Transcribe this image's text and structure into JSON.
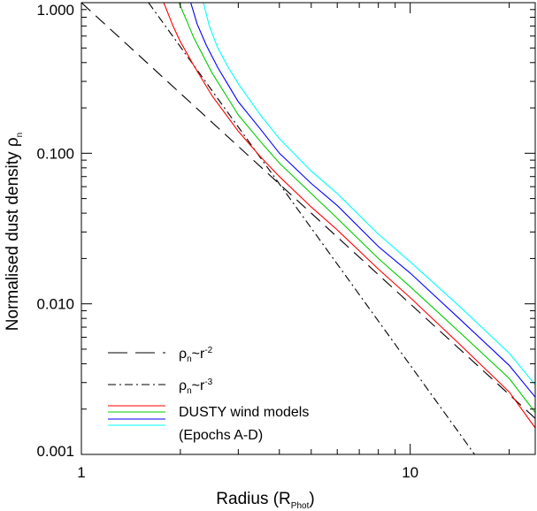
{
  "chart_data": {
    "type": "line",
    "xscale": "log",
    "yscale": "log",
    "xlim": [
      1,
      24
    ],
    "ylim": [
      0.001,
      1.0
    ],
    "xlabel": {
      "main": "Radius (R",
      "sub": "Phot",
      "end": ")"
    },
    "ylabel": {
      "main": "Normalised dust density ρ",
      "sub": "n"
    },
    "x_ticks": [
      {
        "value": 1,
        "label": "1"
      },
      {
        "value": 10,
        "label": "10"
      }
    ],
    "y_ticks": [
      {
        "value": 0.001,
        "label": "0.001"
      },
      {
        "value": 0.01,
        "label": "0.010"
      },
      {
        "value": 0.1,
        "label": "0.100"
      },
      {
        "value": 1.0,
        "label": "1.000"
      }
    ],
    "grid": false,
    "legend_position": "bottom-left",
    "series": [
      {
        "key": "r2",
        "style": "dashed",
        "color": "#000000",
        "x": [
          1,
          24
        ],
        "y": [
          1.0,
          0.001736
        ]
      },
      {
        "key": "r3",
        "style": "dashdot",
        "color": "#000000",
        "x": [
          1.6,
          15.7
        ],
        "y": [
          1.0,
          0.001
        ]
      },
      {
        "key": "epochA",
        "style": "solid",
        "color": "#ff0000",
        "x": [
          1.78,
          1.9,
          2.0,
          2.2,
          2.5,
          3.0,
          3.5,
          4.0,
          5.0,
          6.0,
          8.0,
          10.0,
          14.0,
          20.0,
          24.0
        ],
        "y": [
          1.0,
          0.7,
          0.55,
          0.38,
          0.24,
          0.14,
          0.095,
          0.07,
          0.044,
          0.031,
          0.017,
          0.011,
          0.0055,
          0.0026,
          0.0015
        ]
      },
      {
        "key": "epochB",
        "style": "solid",
        "color": "#00cc00",
        "x": [
          1.98,
          2.1,
          2.2,
          2.5,
          3.0,
          3.5,
          4.0,
          5.0,
          6.0,
          8.0,
          10.0,
          14.0,
          20.0,
          24.0
        ],
        "y": [
          1.0,
          0.74,
          0.58,
          0.34,
          0.18,
          0.12,
          0.086,
          0.054,
          0.037,
          0.02,
          0.013,
          0.0066,
          0.0032,
          0.0019
        ]
      },
      {
        "key": "epochC",
        "style": "solid",
        "color": "#0000ff",
        "x": [
          2.15,
          2.25,
          2.4,
          2.6,
          3.0,
          3.5,
          4.0,
          5.0,
          6.0,
          8.0,
          10.0,
          14.0,
          20.0,
          24.0
        ],
        "y": [
          1.0,
          0.72,
          0.52,
          0.37,
          0.22,
          0.145,
          0.1,
          0.063,
          0.045,
          0.024,
          0.016,
          0.0081,
          0.0039,
          0.0024
        ]
      },
      {
        "key": "epochD",
        "style": "solid",
        "color": "#00ffff",
        "x": [
          2.35,
          2.45,
          2.6,
          2.8,
          3.0,
          3.5,
          4.0,
          5.0,
          6.0,
          8.0,
          10.0,
          14.0,
          20.0,
          24.0
        ],
        "y": [
          1.0,
          0.7,
          0.5,
          0.37,
          0.29,
          0.18,
          0.125,
          0.076,
          0.054,
          0.029,
          0.019,
          0.0098,
          0.0047,
          0.0029
        ]
      }
    ],
    "legend": [
      {
        "style": "dashed",
        "color": "#000000",
        "label": {
          "main": "ρ",
          "sub": "n",
          "mid": "~r",
          "sup": "-2"
        }
      },
      {
        "style": "dashdot",
        "color": "#000000",
        "label": {
          "main": "ρ",
          "sub": "n",
          "mid": "~r",
          "sup": "-3"
        }
      },
      {
        "style": "solid",
        "color": "#ff0000",
        "label": {
          "main": "DUSTY wind models"
        }
      },
      {
        "style": "solid",
        "color": "#00cc00",
        "label": {
          "main": ""
        }
      },
      {
        "style": "solid",
        "color": "#0000ff",
        "label": {
          "main": "(Epochs A-D)"
        }
      },
      {
        "style": "solid",
        "color": "#00ffff",
        "label": {
          "main": ""
        }
      }
    ]
  }
}
